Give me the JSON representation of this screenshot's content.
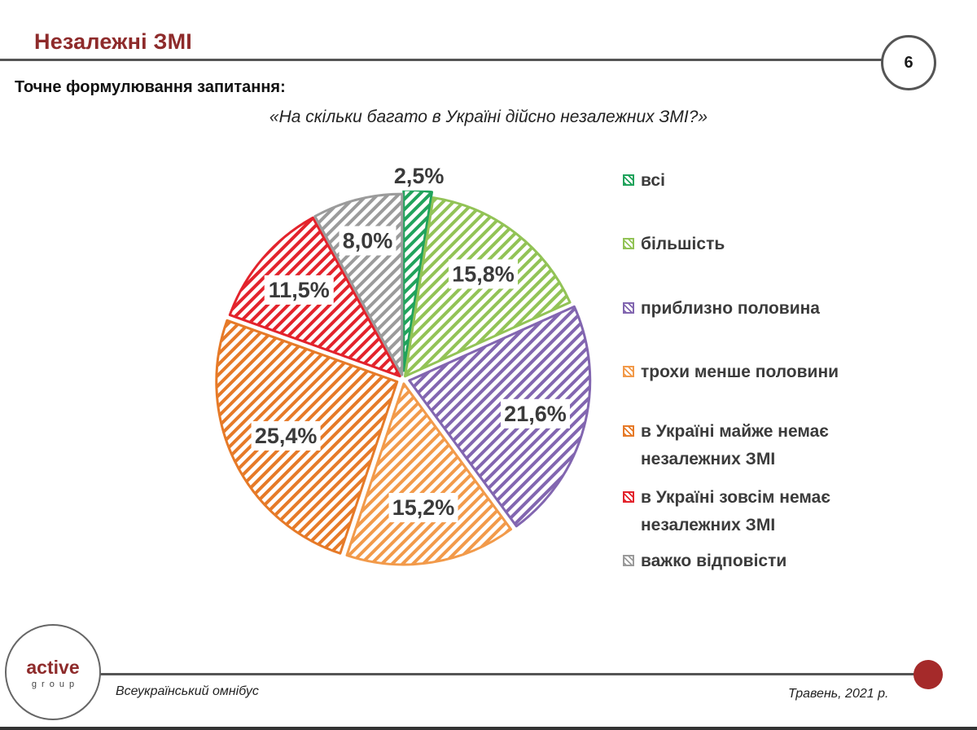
{
  "header": {
    "title": "Незалежні ЗМІ",
    "page_number": "6",
    "question_label": "Точне формулювання запитання:",
    "question_text": "«На скільки багато в Україні дійсно незалежних ЗМІ?»"
  },
  "chart_data": {
    "type": "pie",
    "title": "«На скільки багато в Україні дійсно незалежних ЗМІ?»",
    "unit": "%",
    "slices": [
      {
        "name": "всі",
        "value": 2.5,
        "label": "2,5%",
        "color": "#21a35c"
      },
      {
        "name": "більшість",
        "value": 15.8,
        "label": "15,8%",
        "color": "#92c356"
      },
      {
        "name": "приблизно половина",
        "value": 21.6,
        "label": "21,6%",
        "color": "#8266b0"
      },
      {
        "name": "трохи менше половини",
        "value": 15.2,
        "label": "15,2%",
        "color": "#f29a4a"
      },
      {
        "name": "в Україні майже немає незалежних ЗМІ",
        "value": 25.4,
        "label": "25,4%",
        "color": "#e67a28"
      },
      {
        "name": "в Україні зовсім немає незалежних ЗМІ",
        "value": 11.5,
        "label": "11,5%",
        "color": "#e3232c"
      },
      {
        "name": "важко відповісти",
        "value": 8.0,
        "label": "8,0%",
        "color": "#9b9b9b"
      }
    ],
    "legend": [
      {
        "lines": [
          "всі"
        ]
      },
      {
        "lines": [
          "більшість"
        ]
      },
      {
        "lines": [
          "приблизно половина"
        ]
      },
      {
        "lines": [
          "трохи менше половини"
        ]
      },
      {
        "lines": [
          "в Україні майже немає",
          "незалежних ЗМІ"
        ]
      },
      {
        "lines": [
          "в Україні зовсім немає",
          "незалежних ЗМІ"
        ]
      },
      {
        "lines": [
          "важко відповісти"
        ]
      }
    ],
    "legend_position": "right"
  },
  "footer": {
    "logo_word": "active",
    "logo_sub": "group",
    "left_text": "Всеукраїнський омнібус",
    "right_text": "Травень, 2021 р.",
    "accent": "#a52a2a"
  }
}
